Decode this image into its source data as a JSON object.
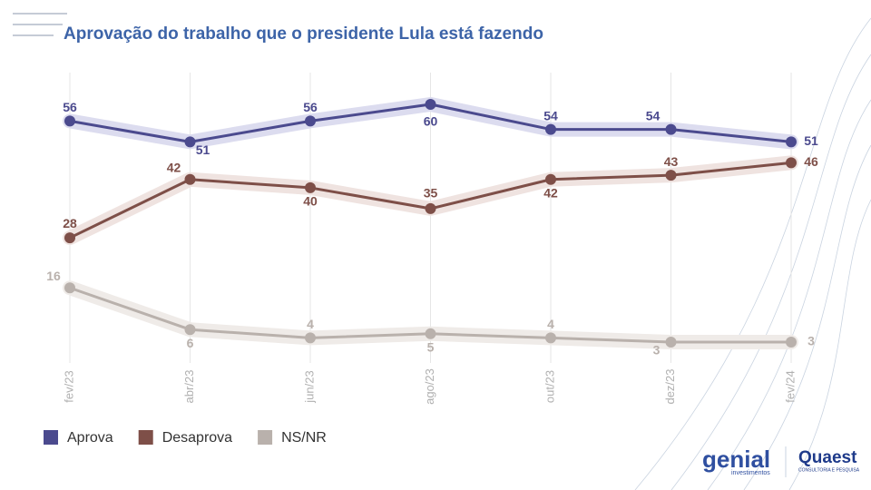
{
  "chart_data": {
    "type": "line",
    "title": "Aprovação do trabalho que o presidente Lula está fazendo",
    "categories": [
      "fev/23",
      "abr/23",
      "jun/23",
      "ago/23",
      "out/23",
      "dez/23",
      "fev/24"
    ],
    "series": [
      {
        "name": "Aprova",
        "color": "#4b4a8e",
        "values": [
          56,
          51,
          56,
          60,
          54,
          54,
          51
        ]
      },
      {
        "name": "Desaprova",
        "color": "#7e4f48",
        "values": [
          28,
          42,
          40,
          35,
          42,
          43,
          46
        ]
      },
      {
        "name": "NS/NR",
        "color": "#b9b1ac",
        "values": [
          16,
          6,
          4,
          5,
          4,
          3,
          3
        ]
      }
    ],
    "grid": true,
    "legend": "bottom-left"
  },
  "branding": {
    "genial": "genial",
    "genial_sub": "investimentos",
    "quaest": "Quaest",
    "quaest_sub": "CONSULTORIA E PESQUISA"
  }
}
